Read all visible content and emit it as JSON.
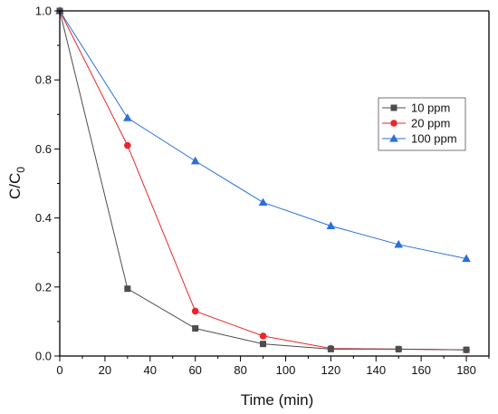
{
  "chart_data": {
    "type": "line",
    "title": "",
    "xlabel": "Time (min)",
    "ylabel": {
      "main": "C/C",
      "sub": "0"
    },
    "x": [
      0,
      30,
      60,
      90,
      120,
      150,
      180
    ],
    "xlim": [
      0,
      190
    ],
    "ylim": [
      0,
      1.0
    ],
    "xticks": [
      "0",
      "20",
      "40",
      "60",
      "80",
      "100",
      "120",
      "140",
      "160",
      "180"
    ],
    "yticks": [
      "0.0",
      "0.2",
      "0.4",
      "0.6",
      "0.8",
      "1.0"
    ],
    "grid": false,
    "legend_position": "upper-right",
    "series": [
      {
        "name": "10 ppm",
        "color": "#4d4d4d",
        "marker": "square",
        "values": [
          1.0,
          0.195,
          0.08,
          0.035,
          0.02,
          0.02,
          0.018
        ]
      },
      {
        "name": "20 ppm",
        "color": "#e8272d",
        "marker": "circle",
        "values": [
          1.0,
          0.61,
          0.13,
          0.058,
          0.022,
          0.02,
          0.018
        ]
      },
      {
        "name": "100 ppm",
        "color": "#2a6fdb",
        "marker": "triangle",
        "values": [
          1.0,
          0.69,
          0.565,
          0.445,
          0.377,
          0.323,
          0.282
        ]
      }
    ]
  }
}
